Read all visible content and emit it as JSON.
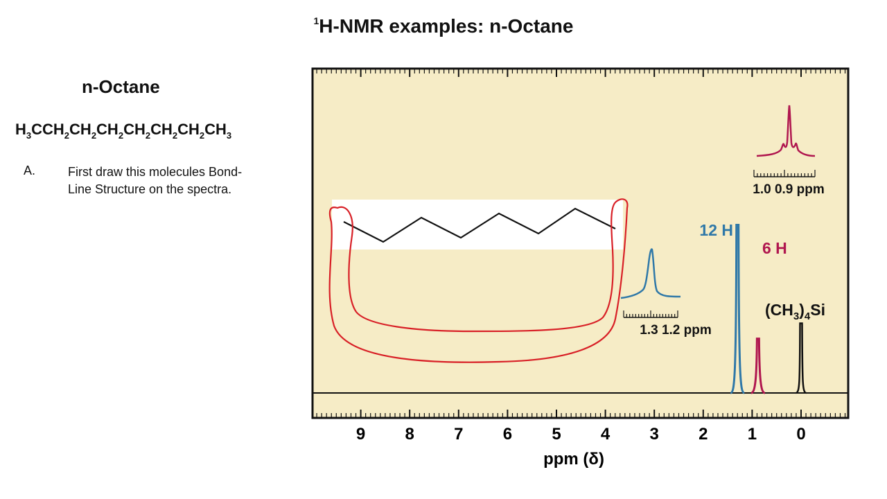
{
  "slide": {
    "title_sup": "1",
    "title_main": "H-NMR examples: n-Octane",
    "section_title": "n-Octane",
    "formula": [
      {
        "t": "H"
      },
      {
        "s": "3"
      },
      {
        "t": "CCH"
      },
      {
        "s": "2"
      },
      {
        "t": "CH"
      },
      {
        "s": "2"
      },
      {
        "t": "CH"
      },
      {
        "s": "2"
      },
      {
        "t": "CH"
      },
      {
        "s": "2"
      },
      {
        "t": "CH"
      },
      {
        "s": "2"
      },
      {
        "t": "CH"
      },
      {
        "s": "2"
      },
      {
        "t": "CH"
      },
      {
        "s": "3"
      }
    ],
    "step": {
      "letter": "A.",
      "text": "First draw this molecules Bond-Line Structure on the spectra."
    }
  },
  "chart_data": {
    "type": "line",
    "xlabel": "ppm (δ)",
    "xlim": [
      10,
      -1
    ],
    "x_reversed": true,
    "ticks": [
      9,
      8,
      7,
      6,
      5,
      4,
      3,
      2,
      1,
      0
    ],
    "peaks": [
      {
        "ppm": 1.3,
        "label": "12 H",
        "relative_height": 0.99,
        "color": "#2f78a8"
      },
      {
        "ppm": 0.88,
        "label": "6 H",
        "relative_height": 0.32,
        "color": "#b0174f"
      },
      {
        "ppm": 0.0,
        "label": "(CH3)4Si",
        "relative_height": 0.41,
        "color": "#111111"
      }
    ],
    "insets": [
      {
        "name": "CH2 multiplet",
        "range_label": "1.3 1.2 ppm",
        "color": "#2f78a8"
      },
      {
        "name": "CH3 triplet",
        "range_label": "1.0 0.9 ppm",
        "color": "#b0174f"
      }
    ],
    "colors": {
      "panel_bg": "#f6ecc6",
      "ch2": "#2f78a8",
      "ch3": "#b0174f",
      "annotation": "#d81f26"
    }
  }
}
